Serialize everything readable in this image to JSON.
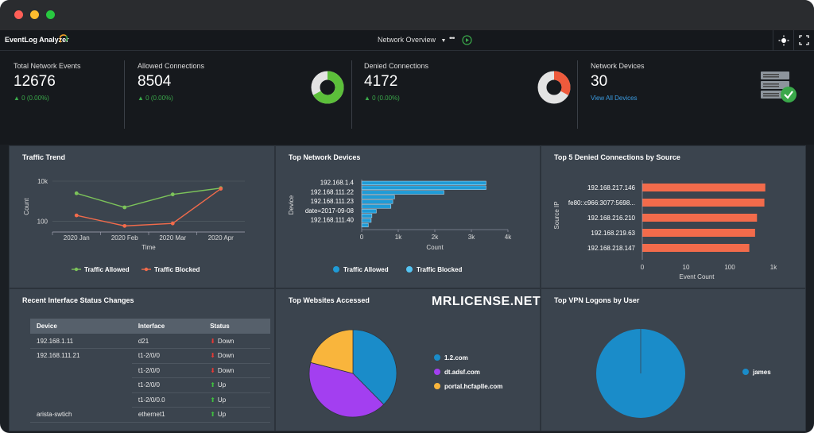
{
  "app": {
    "name": "EventLog Analyzer",
    "dashboard": "Network Overview"
  },
  "window_controls": {
    "close": "#ff5f57",
    "minimize": "#febc2e",
    "maximize": "#28c840"
  },
  "kpis": [
    {
      "label": "Total Network Events",
      "value": "12676",
      "change": "0 (0.00%)"
    },
    {
      "label": "Allowed Connections",
      "value": "8504",
      "change": "0 (0.00%)",
      "donut_fraction": 0.67,
      "donut_color": "#5cbf3a"
    },
    {
      "label": "Denied Connections",
      "value": "4172",
      "change": "0 (0.00%)",
      "donut_fraction": 0.33,
      "donut_color": "#ee5a3c"
    },
    {
      "label": "Network Devices",
      "value": "30",
      "link": "View All Devices"
    }
  ],
  "panels": {
    "traffic_trend": "Traffic Trend",
    "top_devices": "Top Network Devices",
    "top_denied": "Top 5 Denied Connections by Source",
    "interface_changes": "Recent Interface Status Changes",
    "top_websites": "Top Websites Accessed",
    "top_vpn": "Top VPN Logons by User"
  },
  "watermark": "MRLICENSE.NET",
  "chart_data": [
    {
      "type": "line",
      "title": "Traffic Trend",
      "xlabel": "Time",
      "ylabel": "Count",
      "log_scale": true,
      "yticks": [
        "10k",
        "100"
      ],
      "ylim": [
        30,
        10000
      ],
      "categories": [
        "2020 Jan",
        "2020 Feb",
        "2020 Mar",
        "2020 Apr"
      ],
      "series": [
        {
          "name": "Traffic Allowed",
          "color": "#7cc35a",
          "values": [
            2500,
            500,
            2200,
            4500
          ]
        },
        {
          "name": "Traffic Blocked",
          "color": "#f26b4b",
          "values": [
            200,
            60,
            80,
            4200
          ]
        }
      ],
      "legend": "bottom"
    },
    {
      "type": "bar",
      "orientation": "horizontal",
      "title": "Top Network Devices",
      "xlabel": "Count",
      "ylabel": "Device",
      "xlim": [
        0,
        4000
      ],
      "xticks": [
        "0",
        "1k",
        "2k",
        "3k",
        "4k"
      ],
      "categories": [
        "192.168.1.4",
        "",
        "192.168.111.22",
        "",
        "192.168.111.23",
        "",
        "date=2017-09-08",
        "",
        "192.168.111.40",
        ""
      ],
      "series": [
        {
          "name": "Traffic Allowed",
          "color": "#1f9bd6",
          "values": [
            3400,
            3400,
            2250,
            900,
            850,
            800,
            400,
            280,
            260,
            180
          ]
        },
        {
          "name": "Traffic Blocked",
          "color": "#55c4f2",
          "values": [
            0,
            0,
            0,
            0,
            0,
            0,
            0,
            0,
            0,
            0
          ]
        }
      ],
      "legend": "bottom"
    },
    {
      "type": "bar",
      "orientation": "horizontal",
      "title": "Top 5 Denied Connections by Source",
      "xlabel": "Event Count",
      "ylabel": "Source IP",
      "log_scale": true,
      "xticks": [
        "0",
        "10",
        "100",
        "1k"
      ],
      "categories": [
        "192.168.217.146",
        "fe80::c966:3077:5698...",
        "192.168.216.210",
        "192.168.219.63",
        "192.168.218.147"
      ],
      "values": [
        650,
        620,
        420,
        380,
        280
      ],
      "color": "#f26b4b"
    },
    {
      "type": "pie",
      "title": "Top Websites Accessed",
      "labels": [
        "1.2.com",
        "dt.adsf.com",
        "portal.hcfaplle.com"
      ],
      "values": [
        0.376,
        0.414,
        0.21
      ],
      "colors": [
        "#1a8cc9",
        "#a33ff0",
        "#f9b53c"
      ],
      "legend": "right"
    },
    {
      "type": "pie",
      "title": "Top VPN Logons by User",
      "labels": [
        "james"
      ],
      "values": [
        1.0
      ],
      "colors": [
        "#1a8cc9"
      ],
      "legend": "right"
    }
  ],
  "interface_table": {
    "headers": [
      "Device",
      "Interface",
      "Status"
    ],
    "rows": [
      {
        "device": "192.168.1.11",
        "iface": "d21",
        "status": "Down"
      },
      {
        "device": "192.168.111.21",
        "iface": "t1-2/0/0",
        "status": "Down"
      },
      {
        "device": "",
        "iface": "t1-2/0/0",
        "status": "Down"
      },
      {
        "device": "",
        "iface": "t1-2/0/0",
        "status": "Up"
      },
      {
        "device": "",
        "iface": "t1-2/0/0.0",
        "status": "Up"
      },
      {
        "device": "arista-swtich",
        "iface": "ethernet1",
        "status": "Up"
      }
    ]
  }
}
